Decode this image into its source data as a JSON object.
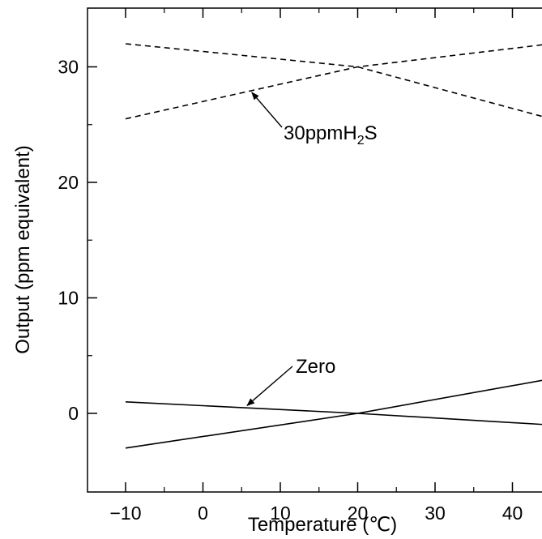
{
  "chart_data": {
    "type": "line",
    "title": "",
    "xlabel": "Temperature (℃)",
    "ylabel": "Output (ppm equivalent)",
    "xlim": [
      -15,
      45
    ],
    "ylim": [
      -5,
      35
    ],
    "x_ticks": [
      "−10",
      "0",
      "10",
      "20",
      "30",
      "40"
    ],
    "y_ticks": [
      "0",
      "10",
      "20",
      "30"
    ],
    "grid": false,
    "legend": "none",
    "series": [
      {
        "group": "30ppm",
        "style": "dashed",
        "x": [
          -10,
          20,
          45
        ],
        "y": [
          32,
          30,
          25.5
        ]
      },
      {
        "group": "30ppm",
        "style": "dashed",
        "x": [
          -10,
          20,
          45
        ],
        "y": [
          25.5,
          30,
          32
        ]
      },
      {
        "group": "zero",
        "style": "solid",
        "x": [
          -10,
          20,
          45
        ],
        "y": [
          1,
          0,
          -1
        ]
      },
      {
        "group": "zero",
        "style": "solid",
        "x": [
          -10,
          20,
          45
        ],
        "y": [
          -3,
          0,
          3
        ]
      }
    ],
    "annotations": [
      {
        "label": "30ppmH",
        "subscript": "2",
        "suffix": "S",
        "text": "30ppmH2S",
        "arrow_to": [
          6,
          28
        ]
      },
      {
        "label": "Zero",
        "text": "Zero",
        "arrow_to": [
          5.5,
          0.4
        ]
      }
    ]
  }
}
